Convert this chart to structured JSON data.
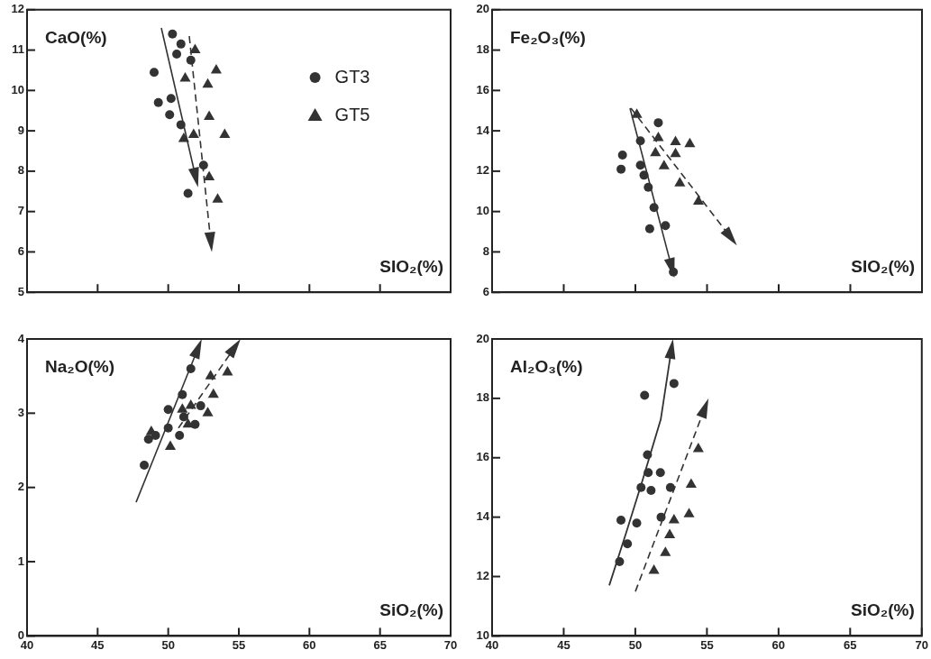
{
  "chart_data": [
    {
      "type": "scatter",
      "ylabel": "CaO(%)",
      "xlabel": "SIO₂(%)",
      "xlim": [
        40,
        70
      ],
      "xticks": [
        40,
        45,
        50,
        55,
        60,
        65,
        70
      ],
      "ylim": [
        5,
        12
      ],
      "yticks": [
        5,
        6,
        7,
        8,
        9,
        10,
        11,
        12
      ],
      "tick_labels": "y",
      "grid": false,
      "legend": "top right",
      "series": [
        {
          "name": "GT3",
          "color": "#333333",
          "marker": "circle",
          "x": [
            50.3,
            50.9,
            50.6,
            51.6,
            49.0,
            49.3,
            50.2,
            50.1,
            50.9,
            52.5,
            51.4
          ],
          "values": [
            11.4,
            11.15,
            10.9,
            10.75,
            10.45,
            9.7,
            9.8,
            9.4,
            9.15,
            8.15,
            7.45
          ]
        },
        {
          "name": "GT5",
          "color": "#333333",
          "marker": "triangle",
          "x": [
            51.9,
            51.2,
            53.4,
            52.8,
            52.9,
            51.8,
            51.1,
            54.0,
            52.9,
            53.5
          ],
          "values": [
            11.0,
            10.3,
            10.5,
            10.15,
            9.35,
            8.9,
            8.8,
            8.9,
            7.85,
            7.3
          ]
        }
      ]
    },
    {
      "type": "scatter",
      "ylabel": "Fe₂O₃(%)",
      "xlabel": "SIO₂(%)",
      "xlim": [
        40,
        70
      ],
      "xticks": [
        40,
        45,
        50,
        55,
        60,
        65,
        70
      ],
      "ylim": [
        6,
        20
      ],
      "yticks": [
        6,
        8,
        10,
        12,
        14,
        16,
        18,
        20
      ],
      "tick_labels": "y",
      "grid": false,
      "series": [
        {
          "color": "#333333",
          "marker": "circle",
          "x": [
            51.6,
            50.35,
            49.1,
            49.0,
            50.35,
            50.6,
            50.9,
            51.3,
            51.0,
            52.1,
            52.65
          ],
          "values": [
            14.4,
            13.5,
            12.8,
            12.1,
            12.3,
            11.8,
            11.2,
            10.2,
            9.15,
            9.3,
            7.0
          ]
        },
        {
          "color": "#333333",
          "marker": "triangle",
          "x": [
            50.1,
            51.6,
            51.4,
            52.8,
            53.8,
            52.8,
            52.0,
            53.1,
            54.4
          ],
          "values": [
            14.8,
            13.65,
            12.9,
            13.45,
            13.35,
            12.85,
            12.25,
            11.4,
            10.5
          ]
        }
      ]
    },
    {
      "type": "scatter",
      "ylabel": "Na₂O(%)",
      "xlabel": "SiO₂(%)",
      "xlim": [
        40,
        70
      ],
      "xticks": [
        40,
        45,
        50,
        55,
        60,
        65,
        70
      ],
      "ylim": [
        0,
        4
      ],
      "yticks": [
        0,
        1,
        2,
        3,
        4
      ],
      "grid": false,
      "series": [
        {
          "color": "#333333",
          "marker": "circle",
          "x": [
            48.3,
            48.6,
            50.0,
            50.0,
            49.1,
            50.8,
            51.1,
            51.9,
            51.0,
            51.6,
            52.3
          ],
          "values": [
            2.3,
            2.65,
            3.05,
            2.8,
            2.7,
            2.7,
            2.95,
            2.85,
            3.25,
            3.6,
            3.1
          ]
        },
        {
          "color": "#333333",
          "marker": "triangle",
          "x": [
            48.8,
            50.15,
            51.0,
            51.6,
            51.4,
            52.8,
            53.0,
            53.2,
            54.2
          ],
          "values": [
            2.75,
            2.55,
            3.05,
            3.1,
            2.85,
            3.0,
            3.5,
            3.25,
            3.55
          ]
        }
      ]
    },
    {
      "type": "scatter",
      "ylabel": "Al₂O₃(%)",
      "xlabel": "SiO₂(%)",
      "xlim": [
        40,
        70
      ],
      "xticks": [
        40,
        45,
        50,
        55,
        60,
        65,
        70
      ],
      "ylim": [
        10,
        20
      ],
      "yticks": [
        10,
        12,
        14,
        16,
        18,
        20
      ],
      "grid": false,
      "series": [
        {
          "color": "#333333",
          "marker": "circle",
          "x": [
            49.0,
            48.9,
            49.45,
            50.1,
            50.65,
            50.85,
            50.9,
            50.4,
            51.1,
            51.75,
            52.45,
            51.8,
            52.7
          ],
          "values": [
            13.9,
            12.5,
            13.1,
            13.8,
            18.1,
            16.1,
            15.5,
            15.0,
            14.9,
            15.5,
            15.0,
            14.0,
            18.5
          ]
        },
        {
          "color": "#333333",
          "marker": "triangle",
          "x": [
            51.3,
            52.1,
            52.4,
            52.7,
            53.75,
            53.9,
            54.4
          ],
          "values": [
            12.2,
            12.8,
            13.4,
            13.9,
            14.1,
            15.1,
            16.3
          ]
        }
      ]
    }
  ]
}
